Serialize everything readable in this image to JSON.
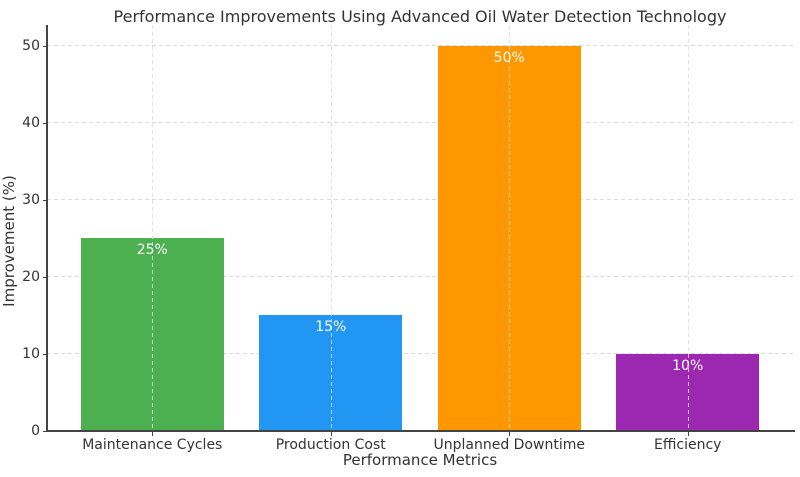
{
  "chart_data": {
    "type": "bar",
    "title": "Performance Improvements Using Advanced Oil Water Detection Technology",
    "categories": [
      "Maintenance Cycles",
      "Production Cost",
      "Unplanned Downtime",
      "Efficiency"
    ],
    "values": [
      25,
      15,
      50,
      10
    ],
    "value_labels": [
      "25%",
      "15%",
      "50%",
      "10%"
    ],
    "bar_colors": [
      "#4caf50",
      "#2196f3",
      "#ff9800",
      "#9c27b0"
    ],
    "xlabel": "Performance Metrics",
    "ylabel": "Improvement (%)",
    "yticks": [
      0,
      10,
      20,
      30,
      40,
      50
    ],
    "ylim": [
      0,
      52.7
    ],
    "xlim": [
      -0.59,
      3.59
    ],
    "bar_width": 0.8,
    "grid": {
      "style": "dashed",
      "axes": "both"
    },
    "legend": "none",
    "value_label_color": "#ffffff"
  },
  "colors": {
    "background": "#ffffff",
    "text": "#333333",
    "grid": "#dbdbdb",
    "spine": "#444444"
  }
}
